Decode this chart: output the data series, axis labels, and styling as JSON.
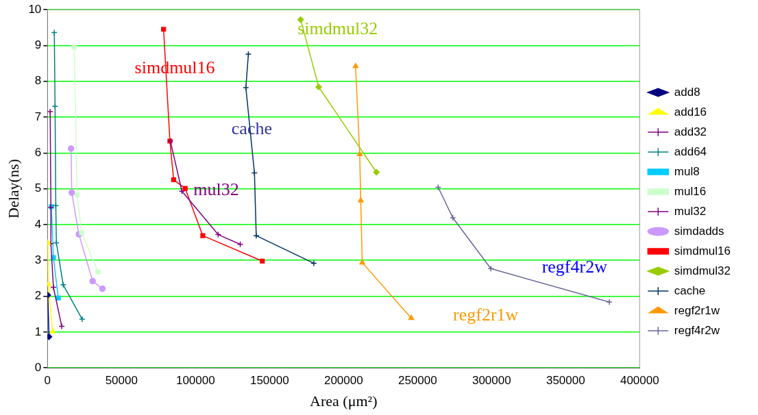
{
  "chart_data": {
    "type": "line",
    "xlabel": "Area (μm²)",
    "ylabel": "Delay(ns)",
    "xlim": [
      0,
      400000
    ],
    "xticks": [
      0,
      50000,
      100000,
      150000,
      200000,
      250000,
      300000,
      350000,
      400000
    ],
    "ylim": [
      0,
      10
    ],
    "yticks": [
      0,
      1,
      2,
      3,
      4,
      5,
      6,
      7,
      8,
      9,
      10
    ],
    "grid": "y",
    "legend": "right",
    "line_style": "solid",
    "series": [
      {
        "name": "add8",
        "color": "#000080",
        "marker": "diamond",
        "x": [
          200,
          1000
        ],
        "values": [
          2.03,
          0.87
        ]
      },
      {
        "name": "add16",
        "color": "#ffff00",
        "marker": "triangle",
        "x": [
          200,
          500,
          3500
        ],
        "values": [
          3.49,
          2.33,
          1.01
        ]
      },
      {
        "name": "add32",
        "color": "#800080",
        "marker": "cross",
        "x": [
          1800,
          2300,
          2300,
          4000,
          9600
        ],
        "values": [
          7.15,
          4.48,
          3.47,
          2.25,
          1.16
        ]
      },
      {
        "name": "add64",
        "color": "#008080",
        "marker": "cross",
        "x": [
          4600,
          5100,
          5600,
          6000,
          10600,
          23400
        ],
        "values": [
          9.36,
          7.3,
          4.53,
          3.49,
          2.32,
          1.36
        ]
      },
      {
        "name": "mul8",
        "color": "#00ccff",
        "marker": "square",
        "x": [
          2600,
          4000,
          7300
        ],
        "values": [
          4.5,
          3.08,
          1.95
        ]
      },
      {
        "name": "mul16",
        "color": "#ccffcc",
        "marker": "square",
        "x": [
          18000,
          20000,
          23000,
          34100
        ],
        "values": [
          8.95,
          4.83,
          3.77,
          2.68
        ]
      },
      {
        "name": "mul32",
        "color": "#800080",
        "marker": "cross",
        "x": [
          83000,
          90800,
          115300,
          130200
        ],
        "values": [
          6.33,
          4.93,
          3.72,
          3.45
        ]
      },
      {
        "name": "simdadds",
        "color": "#cc99ff",
        "marker": "circle",
        "x": [
          15900,
          16400,
          21200,
          30500,
          37100
        ],
        "values": [
          6.12,
          4.89,
          3.73,
          2.42,
          2.21
        ]
      },
      {
        "name": "simdmul16",
        "color": "#ff0000",
        "marker": "square",
        "x": [
          78400,
          82700,
          85200,
          93000,
          104900,
          145100
        ],
        "values": [
          9.45,
          6.33,
          5.25,
          5.01,
          3.69,
          2.98
        ]
      },
      {
        "name": "simdmul32",
        "color": "#99cc00",
        "marker": "diamond",
        "x": [
          171000,
          183200,
          222200
        ],
        "values": [
          9.72,
          7.84,
          5.46
        ]
      },
      {
        "name": "cache",
        "color": "#003366",
        "marker": "cross",
        "x": [
          135700,
          134000,
          139800,
          141000,
          179900
        ],
        "values": [
          8.76,
          7.82,
          5.44,
          3.69,
          2.92
        ]
      },
      {
        "name": "regf2r1w",
        "color": "#ff9900",
        "marker": "triangle",
        "x": [
          208100,
          210900,
          211600,
          212600,
          245700
        ],
        "values": [
          8.42,
          5.96,
          4.67,
          2.94,
          1.39
        ]
      },
      {
        "name": "regf4r2w",
        "color": "#666699",
        "marker": "cross",
        "x": [
          263900,
          273800,
          299500,
          379500
        ],
        "values": [
          5.04,
          4.19,
          2.77,
          1.84
        ]
      }
    ],
    "annotations": [
      "simdmul16",
      "cache",
      "mul32",
      "simdmul32",
      "regf2r1w",
      "regf4r2w"
    ]
  }
}
